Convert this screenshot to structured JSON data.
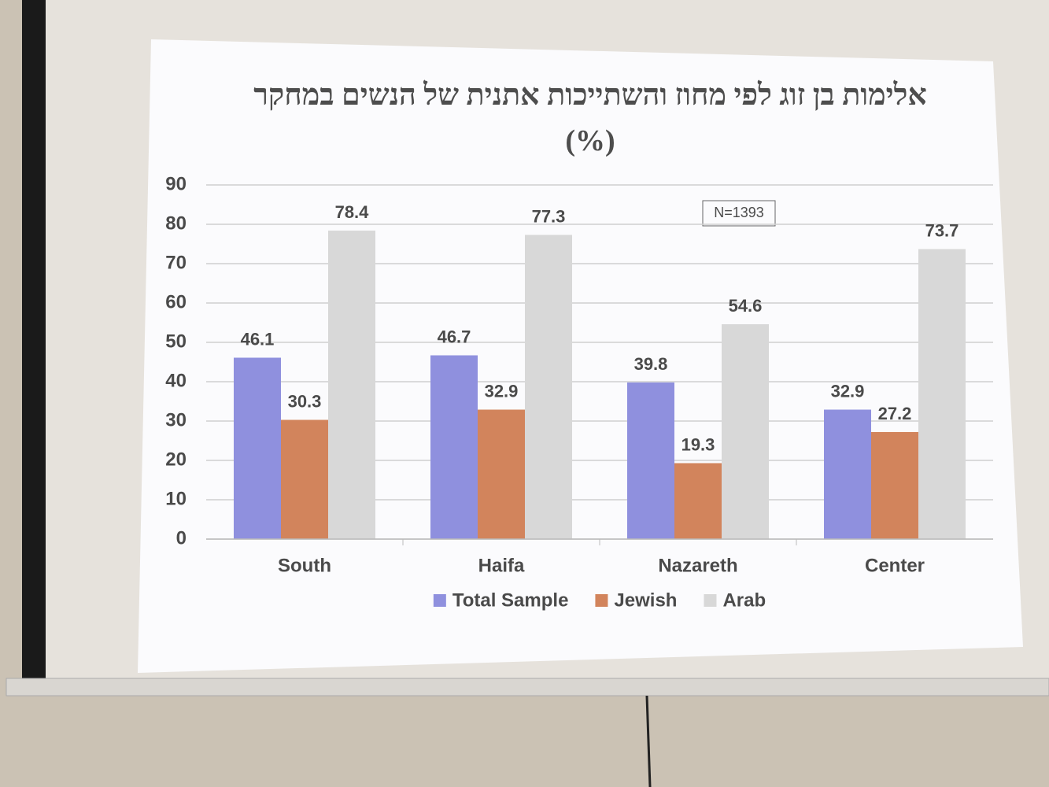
{
  "chart_data": {
    "type": "bar",
    "title": "אלימות בן זוג לפי מחוז והשתייכות אתנית של הנשים במחקר (%)",
    "annotation": "N=1393",
    "categories": [
      "South",
      "Haifa",
      "Nazareth",
      "Center"
    ],
    "series": [
      {
        "name": "Total Sample",
        "color": "#8f90de",
        "values": [
          46.1,
          46.7,
          39.8,
          32.9
        ]
      },
      {
        "name": "Jewish",
        "color": "#d2845c",
        "values": [
          30.3,
          32.9,
          19.3,
          27.2
        ]
      },
      {
        "name": "Arab",
        "color": "#d8d8d8",
        "values": [
          78.4,
          77.3,
          54.6,
          73.7
        ]
      }
    ],
    "ylim": [
      0,
      90
    ],
    "yticks": [
      0,
      10,
      20,
      30,
      40,
      50,
      60,
      70,
      80,
      90
    ],
    "grid": true,
    "legend": "bottom"
  }
}
